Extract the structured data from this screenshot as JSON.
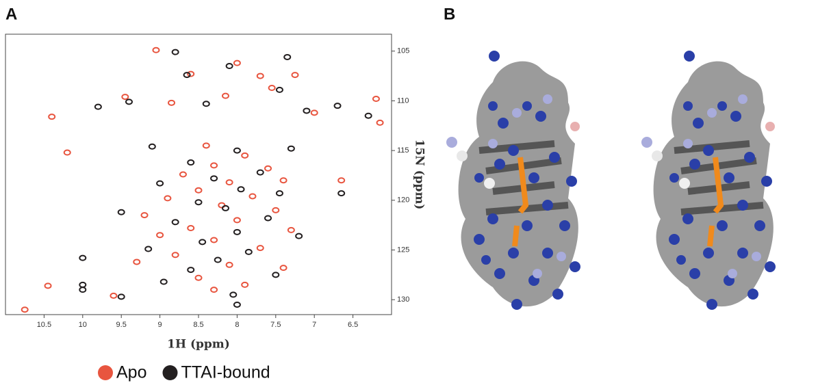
{
  "panel_labels": [
    "A",
    "B"
  ],
  "chart_data": {
    "type": "scatter",
    "x_label": "1H (ppm)",
    "y_label": "15N (ppm)",
    "xlim": [
      11.0,
      6.0
    ],
    "ylim": [
      103.3,
      131.5
    ],
    "xticks": [
      10.5,
      10.0,
      9.5,
      9.0,
      8.5,
      8.0,
      7.5,
      7.0,
      6.5
    ],
    "yticks": [
      105,
      110,
      115,
      120,
      125,
      130
    ],
    "series": [
      {
        "name": "Apo",
        "color": "#e8553f",
        "x": [
          9.05,
          8.6,
          8.0,
          7.7,
          7.25,
          7.55,
          8.15,
          8.85,
          9.45,
          10.4,
          6.2,
          7.0,
          10.2,
          8.4,
          7.9,
          8.3,
          7.6,
          8.7,
          8.1,
          7.4,
          8.5,
          8.9,
          7.8,
          8.2,
          9.2,
          7.5,
          8.0,
          8.6,
          7.3,
          9.0,
          8.3,
          7.7,
          8.8,
          8.1,
          9.3,
          7.4,
          8.5,
          10.45,
          7.9,
          8.3,
          9.6,
          10.75,
          6.65,
          6.15
        ],
        "values": [
          104.9,
          107.3,
          106.2,
          107.5,
          107.4,
          108.7,
          109.5,
          110.2,
          109.6,
          111.6,
          109.8,
          111.2,
          115.2,
          114.5,
          115.5,
          116.5,
          116.8,
          117.4,
          118.2,
          118.0,
          119.0,
          119.8,
          119.6,
          120.5,
          121.5,
          121.0,
          122.0,
          122.8,
          123.0,
          123.5,
          124.0,
          124.8,
          125.5,
          126.5,
          126.2,
          126.8,
          127.8,
          128.6,
          128.5,
          129.0,
          129.6,
          131.0,
          118.0,
          112.2
        ]
      },
      {
        "name": "TTAI-bound",
        "color": "#231f20",
        "x": [
          8.8,
          7.35,
          8.65,
          8.1,
          7.45,
          8.4,
          9.8,
          9.4,
          6.3,
          7.1,
          9.1,
          8.0,
          7.3,
          8.6,
          7.7,
          8.3,
          9.0,
          7.95,
          7.45,
          8.5,
          8.15,
          9.5,
          7.6,
          8.8,
          8.0,
          7.2,
          8.45,
          9.15,
          7.85,
          8.25,
          10.0,
          8.6,
          7.5,
          10.0,
          8.95,
          8.05,
          9.5,
          10.0,
          8.0,
          6.65,
          6.7
        ],
        "values": [
          105.1,
          105.6,
          107.4,
          106.5,
          108.9,
          110.3,
          110.6,
          110.1,
          111.5,
          111.0,
          114.6,
          115.0,
          114.8,
          116.2,
          117.2,
          117.8,
          118.3,
          118.9,
          119.3,
          120.2,
          120.8,
          121.2,
          121.8,
          122.2,
          123.2,
          123.6,
          124.2,
          124.9,
          125.2,
          126.0,
          125.8,
          127.0,
          127.5,
          128.5,
          128.2,
          129.5,
          129.7,
          129.0,
          130.5,
          119.3,
          110.5
        ]
      }
    ]
  }
}
